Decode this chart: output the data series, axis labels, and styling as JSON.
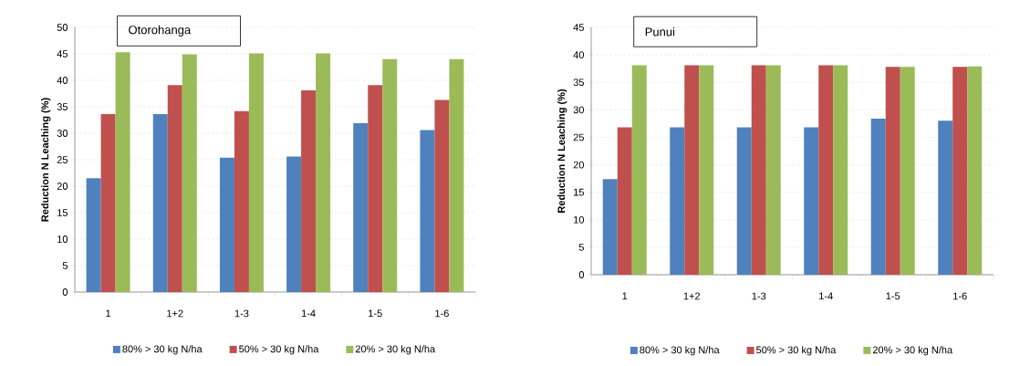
{
  "chart_data": [
    {
      "type": "bar",
      "title": "Otorohanga",
      "ylabel": "Reduction N Leaching (%)",
      "categories": [
        "1",
        "1+2",
        "1-3",
        "1-4",
        "1-5",
        "1-6"
      ],
      "ylim": [
        0,
        50
      ],
      "yticks": [
        0,
        5,
        10,
        15,
        20,
        25,
        30,
        35,
        40,
        45,
        50
      ],
      "grid": "y",
      "legend": "bottom",
      "series": [
        {
          "name": "80% > 30 kg N/ha",
          "color": "#4f81bd",
          "values": [
            21.5,
            33.6,
            25.4,
            25.6,
            31.9,
            30.6
          ]
        },
        {
          "name": "50% > 30 kg N/ha",
          "color": "#c0504d",
          "values": [
            33.6,
            39.1,
            34.2,
            38.1,
            39.1,
            36.3
          ]
        },
        {
          "name": "20% > 30 kg N/ha",
          "color": "#9bbb59",
          "values": [
            45.3,
            44.9,
            45.1,
            45.1,
            44.0,
            44.0
          ]
        }
      ]
    },
    {
      "type": "bar",
      "title": "Punui",
      "ylabel": "Reduction N Leaching (%)",
      "categories": [
        "1",
        "1+2",
        "1-3",
        "1-4",
        "1-5",
        "1-6"
      ],
      "ylim": [
        0,
        45
      ],
      "yticks": [
        0,
        5,
        10,
        15,
        20,
        25,
        30,
        35,
        40,
        45
      ],
      "grid": "y",
      "legend": "bottom",
      "series": [
        {
          "name": "80% > 30 kg N/ha",
          "color": "#4f81bd",
          "values": [
            17.4,
            26.8,
            26.8,
            26.8,
            28.4,
            28.0
          ]
        },
        {
          "name": "50% > 30 kg N/ha",
          "color": "#c0504d",
          "values": [
            26.8,
            38.1,
            38.1,
            38.1,
            37.8,
            37.8
          ]
        },
        {
          "name": "20% > 30 kg N/ha",
          "color": "#9bbb59",
          "values": [
            38.1,
            38.1,
            38.1,
            38.1,
            37.8,
            37.9
          ]
        }
      ]
    }
  ]
}
